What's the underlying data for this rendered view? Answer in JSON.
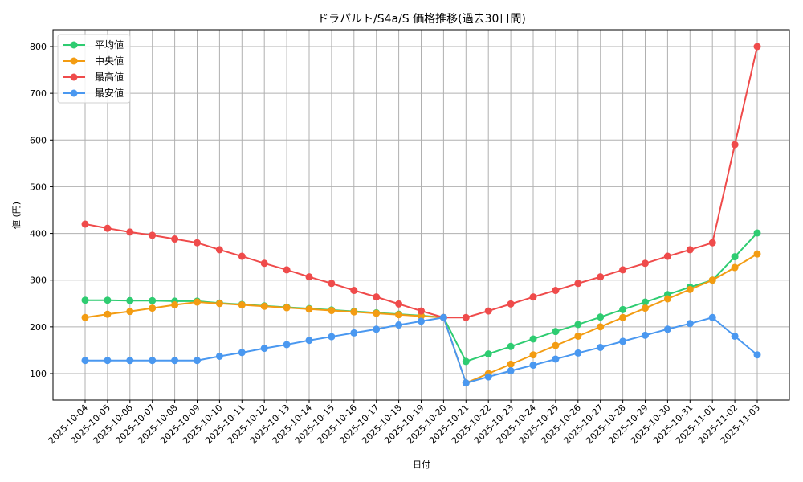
{
  "chart_data": {
    "type": "line",
    "title": "ドラパルト/S4a/S 価格推移(過去30日間)",
    "xlabel": "日付",
    "ylabel": "値 (円)",
    "ylim": [
      45,
      835
    ],
    "yticks": [
      100,
      200,
      300,
      400,
      500,
      600,
      700,
      800
    ],
    "grid": true,
    "legend_position": "upper left",
    "categories": [
      "2025-10-04",
      "2025-10-05",
      "2025-10-06",
      "2025-10-07",
      "2025-10-08",
      "2025-10-09",
      "2025-10-10",
      "2025-10-11",
      "2025-10-12",
      "2025-10-13",
      "2025-10-14",
      "2025-10-15",
      "2025-10-16",
      "2025-10-17",
      "2025-10-18",
      "2025-10-19",
      "2025-10-20",
      "2025-10-21",
      "2025-10-22",
      "2025-10-23",
      "2025-10-24",
      "2025-10-25",
      "2025-10-26",
      "2025-10-27",
      "2025-10-28",
      "2025-10-29",
      "2025-10-30",
      "2025-10-31",
      "2025-11-01",
      "2025-11-02",
      "2025-11-03"
    ],
    "series": [
      {
        "name": "平均値",
        "color": "#2ecc71",
        "values": [
          257,
          257,
          256,
          256,
          255,
          255,
          251,
          248,
          245,
          242,
          239,
          236,
          233,
          230,
          227,
          224,
          220,
          126,
          142,
          158,
          174,
          190,
          205,
          221,
          237,
          253,
          269,
          285,
          300,
          350,
          401
        ]
      },
      {
        "name": "中央値",
        "color": "#f39c12",
        "values": [
          220,
          227,
          233,
          240,
          247,
          253,
          250,
          247,
          244,
          241,
          238,
          235,
          232,
          229,
          226,
          223,
          220,
          80,
          100,
          120,
          140,
          160,
          180,
          200,
          220,
          240,
          260,
          280,
          300,
          327,
          356
        ]
      },
      {
        "name": "最高値",
        "color": "#ef4b4b",
        "values": [
          420,
          411,
          403,
          396,
          388,
          380,
          365,
          351,
          336,
          322,
          307,
          293,
          278,
          264,
          249,
          234,
          220,
          220,
          234,
          249,
          264,
          278,
          293,
          307,
          322,
          336,
          351,
          365,
          380,
          590,
          800
        ]
      },
      {
        "name": "最安値",
        "color": "#4a98f0",
        "values": [
          128,
          128,
          128,
          128,
          128,
          128,
          137,
          145,
          154,
          162,
          171,
          179,
          187,
          195,
          204,
          212,
          220,
          80,
          93,
          106,
          118,
          131,
          144,
          156,
          169,
          182,
          195,
          207,
          220,
          180,
          140
        ]
      }
    ]
  }
}
